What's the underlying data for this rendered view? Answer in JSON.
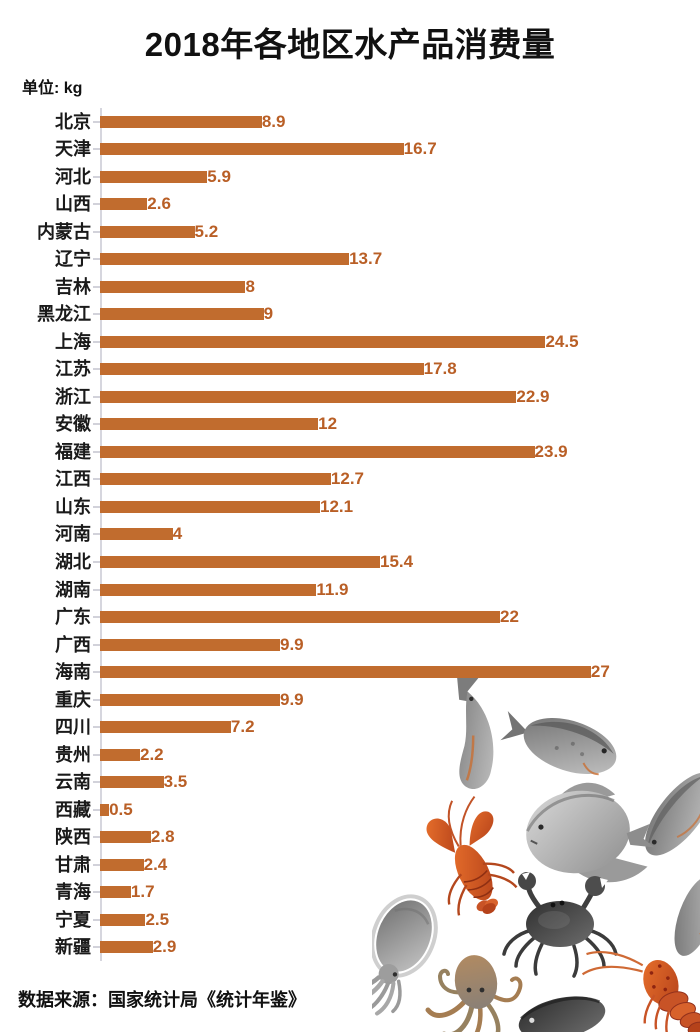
{
  "header": {
    "title": "2018年各地区水产品消费量",
    "unit_label": "单位: kg"
  },
  "footer": {
    "source_label": "数据来源：国家统计局《统计年鉴》"
  },
  "colors": {
    "bar": "#c16c2e",
    "value_label": "#b95f26",
    "axis_line": "#d6d6de",
    "title_text": "#111111"
  },
  "chart_data": {
    "type": "bar",
    "orientation": "horizontal",
    "title": "2018年各地区水产品消费量",
    "unit": "kg",
    "xlabel": "",
    "ylabel": "",
    "xlim": [
      0,
      27.5
    ],
    "grid": false,
    "legend": false,
    "value_labels": true,
    "categories": [
      "北京",
      "天津",
      "河北",
      "山西",
      "内蒙古",
      "辽宁",
      "吉林",
      "黑龙江",
      "上海",
      "江苏",
      "浙江",
      "安徽",
      "福建",
      "江西",
      "山东",
      "河南",
      "湖北",
      "湖南",
      "广东",
      "广西",
      "海南",
      "重庆",
      "四川",
      "贵州",
      "云南",
      "西藏",
      "陕西",
      "甘肃",
      "青海",
      "宁夏",
      "新疆"
    ],
    "values": [
      8.9,
      16.7,
      5.9,
      2.6,
      5.2,
      13.7,
      8,
      9,
      24.5,
      17.8,
      22.9,
      12,
      23.9,
      12.7,
      12.1,
      4,
      15.4,
      11.9,
      22,
      9.9,
      27,
      9.9,
      7.2,
      2.2,
      3.5,
      0.5,
      2.8,
      2.4,
      1.7,
      2.5,
      2.9
    ],
    "source": "数据来源：国家统计局《统计年鉴》"
  },
  "illustration": {
    "description": "watercolor seafood collage",
    "creatures": [
      "fish",
      "fish",
      "fish",
      "pomfret",
      "crayfish",
      "cuttlefish",
      "crab",
      "octopus",
      "spiny-lobster",
      "fish"
    ]
  }
}
